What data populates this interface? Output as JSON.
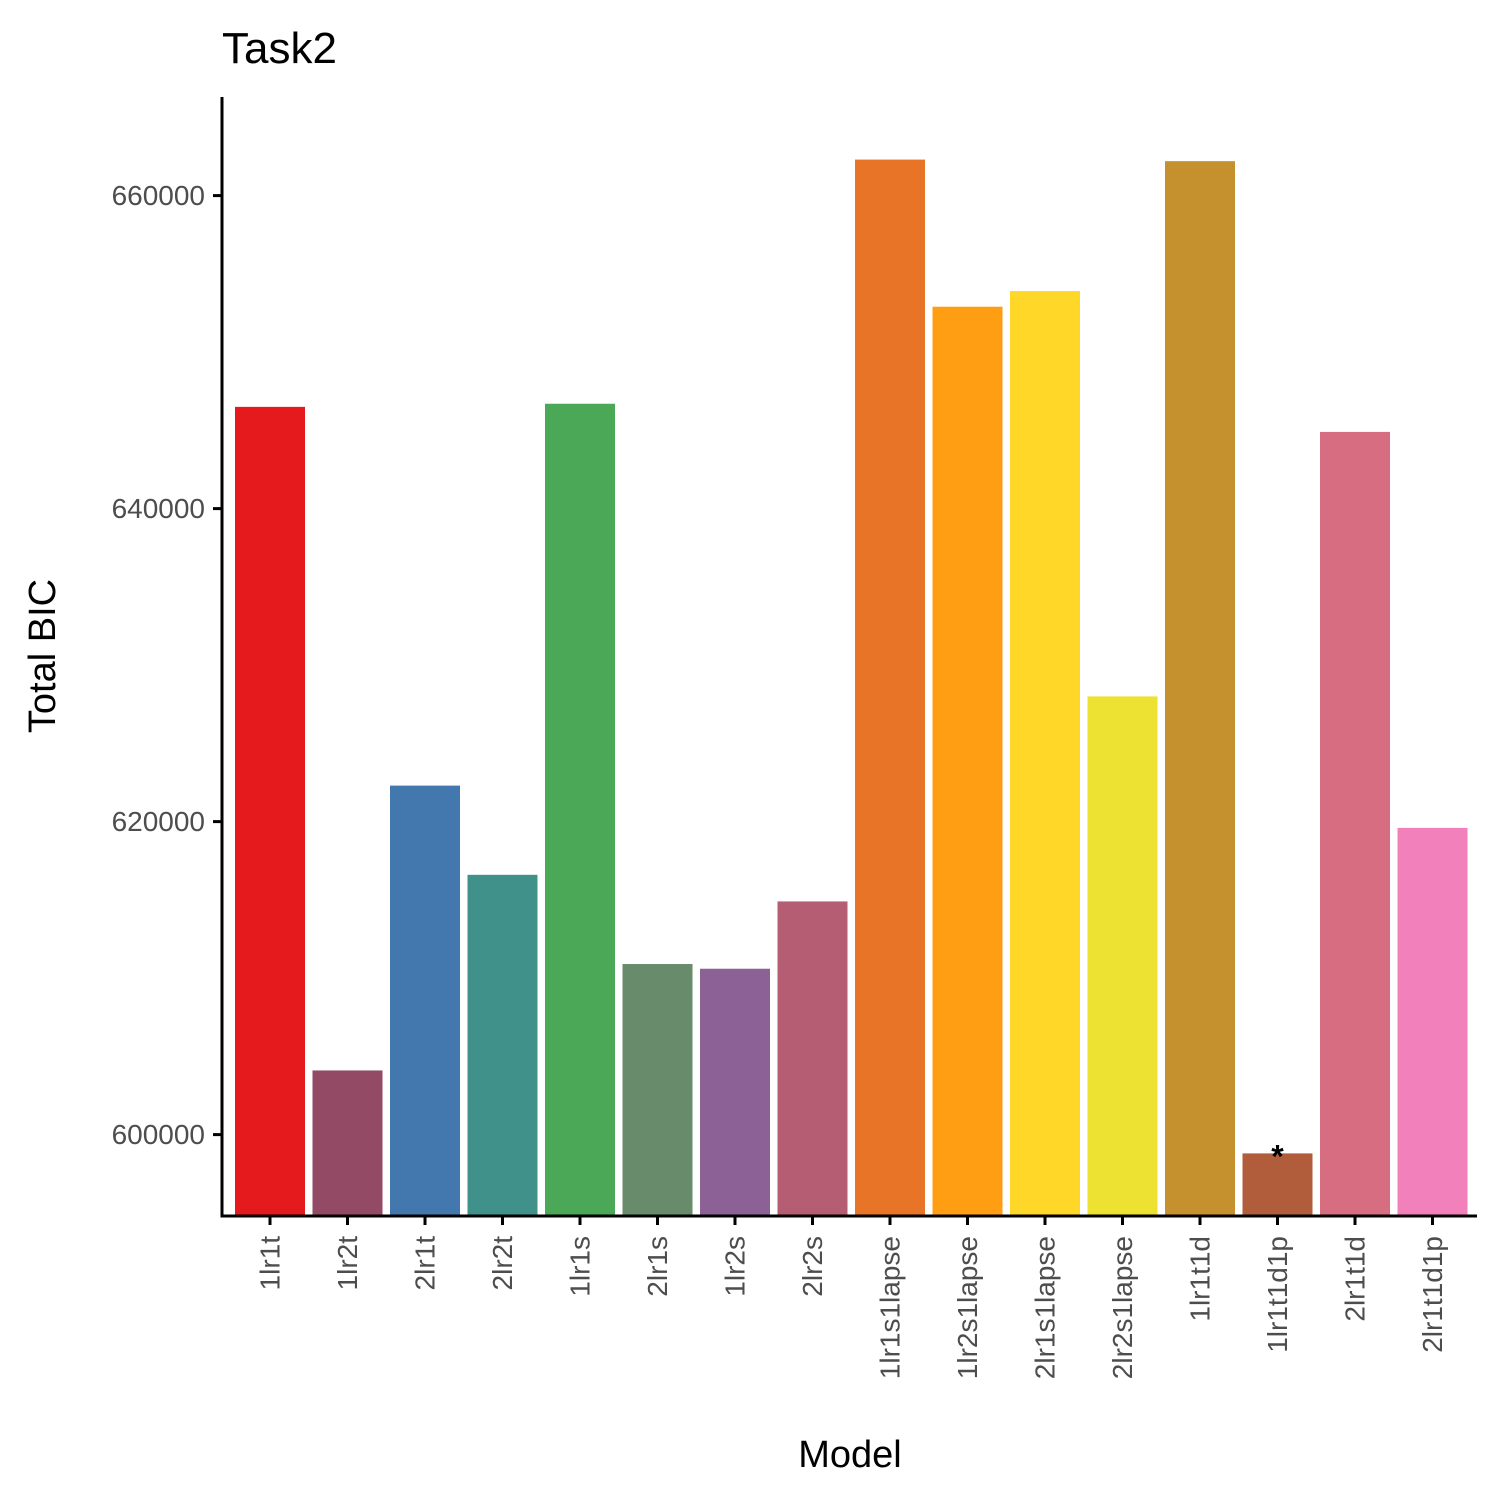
{
  "chart_data": {
    "type": "bar",
    "title": "Task2",
    "xlabel": "Model",
    "ylabel": "Total BIC",
    "ylim": [
      594800,
      666300
    ],
    "yticks": [
      600000,
      620000,
      640000,
      660000
    ],
    "ytick_labels": [
      "600000",
      "620000",
      "640000",
      "660000"
    ],
    "grid": false,
    "legend": "none",
    "categories": [
      "1lr1t",
      "1lr2t",
      "2lr1t",
      "2lr2t",
      "1lr1s",
      "2lr1s",
      "1lr2s",
      "2lr2s",
      "1lr1s1lapse",
      "1lr2s1lapse",
      "2lr1s1lapse",
      "2lr2s1lapse",
      "1lr1t1d",
      "1lr1t1d1p",
      "2lr1t1d",
      "2lr1t1d1p"
    ],
    "values": [
      646500,
      604100,
      622300,
      616600,
      646700,
      610900,
      610600,
      614900,
      662300,
      652900,
      653900,
      628000,
      662200,
      598800,
      644900,
      619600
    ],
    "colors": [
      "#e41a1c",
      "#924a65",
      "#4278ad",
      "#41918b",
      "#4ba856",
      "#688b6b",
      "#8b6196",
      "#b55d72",
      "#e77427",
      "#ff9e12",
      "#ffd728",
      "#ede232",
      "#c5902e",
      "#b15c3a",
      "#d66d80",
      "#f281bb"
    ],
    "annotations": [
      {
        "category": "1lr1t1d1p",
        "text": "*"
      }
    ]
  }
}
